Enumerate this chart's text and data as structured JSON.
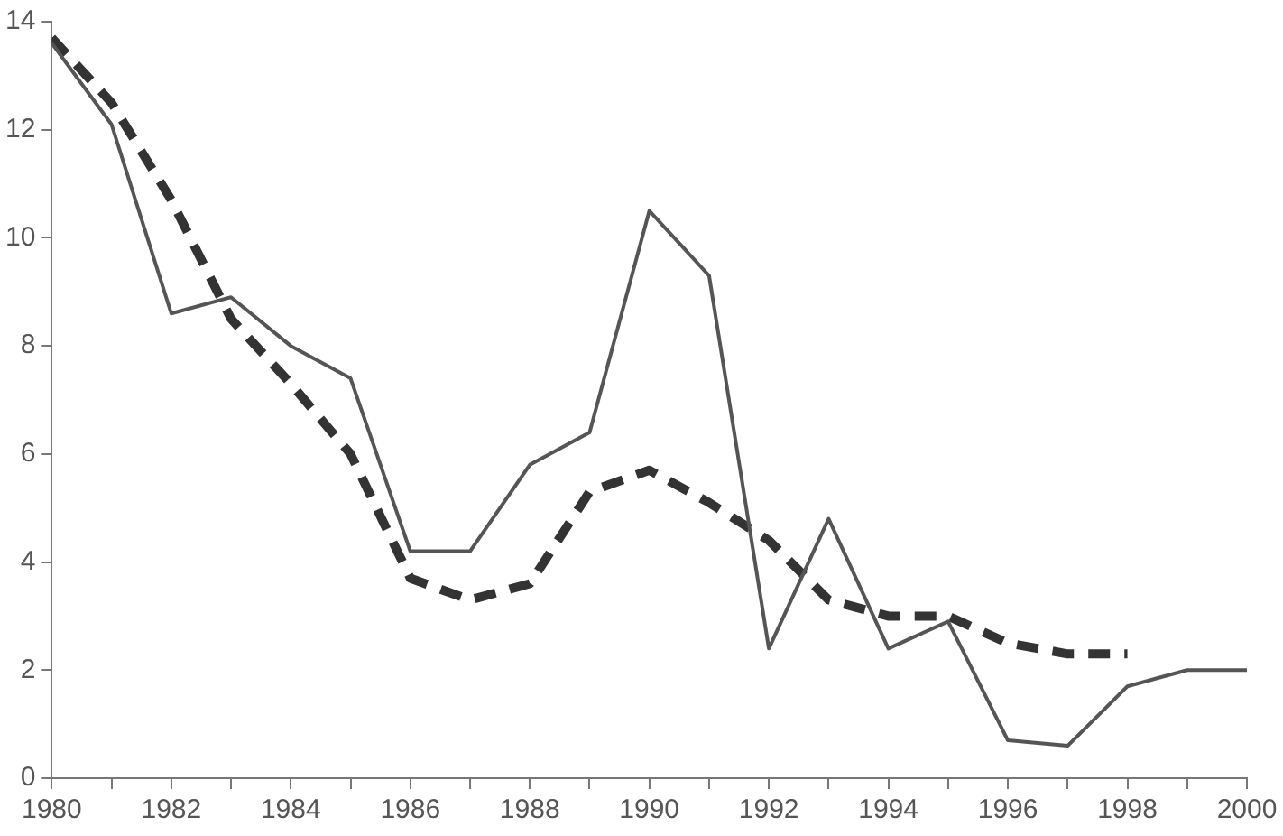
{
  "chart_data": {
    "type": "line",
    "x": [
      1980,
      1981,
      1982,
      1983,
      1984,
      1985,
      1986,
      1987,
      1988,
      1989,
      1990,
      1991,
      1992,
      1993,
      1994,
      1995,
      1996,
      1997,
      1998,
      1999,
      2000
    ],
    "series": [
      {
        "color": "#555555",
        "line_style": "solid",
        "values": [
          13.6,
          12.1,
          8.6,
          8.9,
          8.0,
          7.4,
          4.2,
          4.2,
          5.8,
          6.4,
          10.5,
          9.3,
          2.4,
          4.8,
          2.4,
          2.9,
          0.7,
          0.6,
          1.7,
          2.0,
          2.0
        ]
      },
      {
        "color": "#333333",
        "line_style": "dashed",
        "values": [
          13.7,
          12.5,
          10.7,
          8.5,
          7.3,
          6.0,
          3.7,
          3.3,
          3.6,
          5.3,
          5.7,
          5.1,
          4.4,
          3.3,
          3.0,
          3.0,
          2.5,
          2.3,
          2.3,
          null,
          null
        ]
      }
    ],
    "xlim": [
      1980,
      2000
    ],
    "xticks": [
      1980,
      {
        "value": 1981,
        "label": null
      },
      1982,
      {
        "value": 1983,
        "label": null
      },
      1984,
      {
        "value": 1985,
        "label": null
      },
      1986,
      {
        "value": 1987,
        "label": null
      },
      1988,
      {
        "value": 1989,
        "label": null
      },
      1990,
      {
        "value": 1991,
        "label": null
      },
      1992,
      {
        "value": 1993,
        "label": null
      },
      1994,
      {
        "value": 1995,
        "label": null
      },
      1996,
      {
        "value": 1997,
        "label": null
      },
      1998,
      {
        "value": 1999,
        "label": null
      },
      2000
    ],
    "ylim": [
      0,
      14
    ],
    "yticks": [
      0,
      2,
      4,
      6,
      8,
      10,
      12,
      14
    ],
    "grid": false,
    "legend": false,
    "marker": "none"
  }
}
